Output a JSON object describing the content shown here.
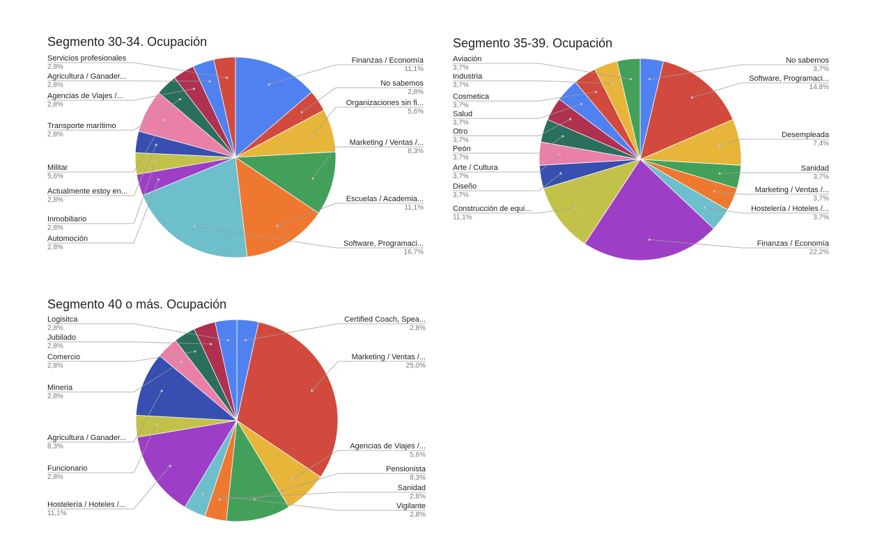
{
  "palette": [
    "#4f81f0",
    "#d14a3d",
    "#e8b53b",
    "#43a05a",
    "#ef7830",
    "#6cbfcb",
    "#9d3fc6",
    "#c2c24a",
    "#374fb0",
    "#ea7fa8",
    "#2a6e5e",
    "#b0304f"
  ],
  "chart_data": [
    {
      "type": "pie",
      "title": "Segmento 30-34. Ocupación",
      "labels": [
        "Finanzas / Economía",
        "No sabemos",
        "Organizaciones sin fi...",
        "Marketing / Ventas /...",
        "Escuelas / Academia...",
        "Software, Programaci...",
        "Automoción",
        "Inmobiliario",
        "Actualmente estoy en...",
        "Militar",
        "Transporte marítimo",
        "Agencias de Viajes /...",
        "Agricultura / Ganader...",
        "Servicios profesionales"
      ],
      "values": [
        11.1,
        2.8,
        5.6,
        8.3,
        11.1,
        16.7,
        2.8,
        2.8,
        2.8,
        5.6,
        2.8,
        2.8,
        2.8,
        2.8
      ],
      "value_labels": [
        "11,1%",
        "2,8%",
        "5,6%",
        "8,3%",
        "11,1%",
        "16,7%",
        "2,8%",
        "2,8%",
        "2,8%",
        "5,6%",
        "2,8%",
        "2,8%",
        "2,8%",
        "2,8%"
      ]
    },
    {
      "type": "pie",
      "title": "Segmento 35-39. Ocupación",
      "labels": [
        "No sabemos",
        "Software, Programaci...",
        "Desempleada",
        "Sanidad",
        "Marketing / Ventas /...",
        "Hostelería / Hoteles /...",
        "Finanzas / Economía",
        "Construcción de equi...",
        "Diseño",
        "Arte / Cultura",
        "Peón",
        "Otro",
        "Salud",
        "Cosmetica",
        "Industria",
        "Aviación"
      ],
      "values": [
        3.7,
        14.8,
        7.4,
        3.7,
        3.7,
        3.7,
        22.2,
        11.1,
        3.7,
        3.7,
        3.7,
        3.7,
        3.7,
        3.7,
        3.7,
        3.7
      ],
      "value_labels": [
        "3,7%",
        "14,8%",
        "7,4%",
        "3,7%",
        "3,7%",
        "3,7%",
        "22,2%",
        "11,1%",
        "3,7%",
        "3,7%",
        "3,7%",
        "3,7%",
        "3,7%",
        "3,7%",
        "3,7%",
        "3,7%"
      ]
    },
    {
      "type": "pie",
      "title": "Segmento 40 o más. Ocupación",
      "labels": [
        "Certified Coach, Spea...",
        "Marketing / Ventas /...",
        "Agencias de Viajes /...",
        "Pensionista",
        "Sanidad",
        "Vigilante",
        "Hostelería / Hoteles /...",
        "Funcionario",
        "Agricultura / Ganader...",
        "Mineria",
        "Comercio",
        "Jubilado",
        "Logisitca"
      ],
      "values": [
        2.8,
        25.0,
        5.6,
        8.3,
        2.8,
        2.8,
        11.1,
        2.8,
        8.3,
        2.8,
        2.8,
        2.8,
        2.8
      ],
      "value_labels": [
        "2,8%",
        "25,0%",
        "5,6%",
        "8,3%",
        "2,8%",
        "2,8%",
        "11,1%",
        "2,8%",
        "8,3%",
        "2,8%",
        "2,8%",
        "2,8%",
        "2,8%"
      ]
    }
  ]
}
